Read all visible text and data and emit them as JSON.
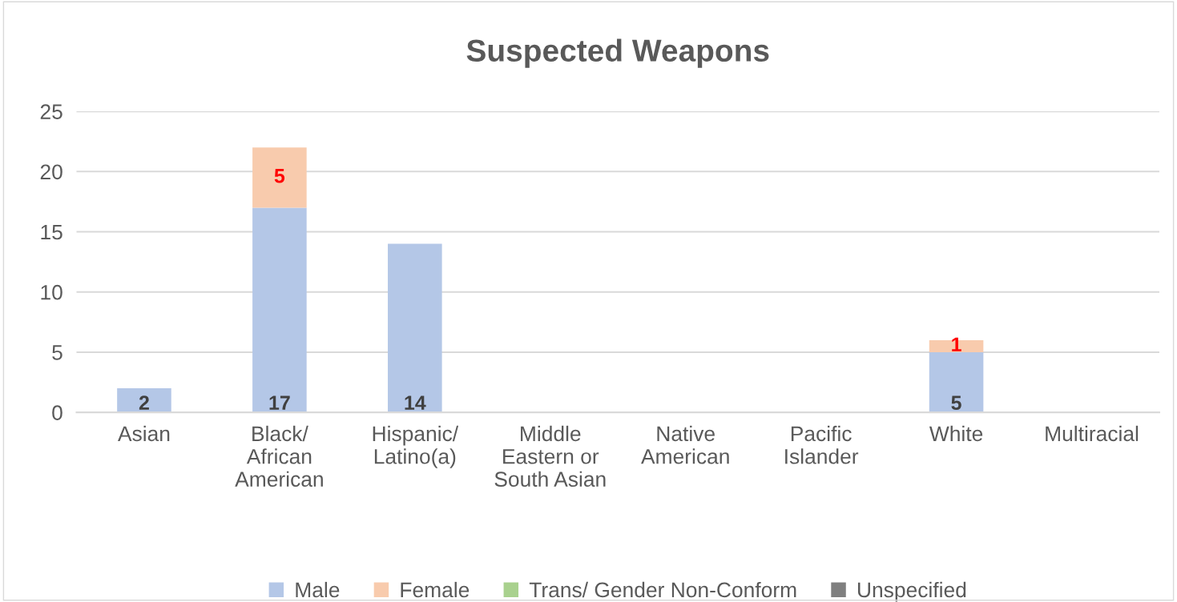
{
  "chart_data": {
    "type": "bar",
    "title": "Suspected Weapons",
    "stacked": true,
    "categories": [
      "Asian",
      "Black/\nAfrican\nAmerican",
      "Hispanic/\nLatino(a)",
      "Middle\nEastern or\nSouth Asian",
      "Native\nAmerican",
      "Pacific\nIslander",
      "White",
      "Multiracial"
    ],
    "series": [
      {
        "name": "Male",
        "color": "#b4c7e7",
        "values": [
          2,
          17,
          14,
          null,
          null,
          null,
          5,
          null
        ],
        "value_labels": [
          "2",
          "17",
          "14",
          null,
          null,
          null,
          "5",
          null
        ]
      },
      {
        "name": "Female",
        "color": "#f8cbad",
        "values": [
          null,
          5,
          null,
          null,
          null,
          null,
          1,
          null
        ],
        "value_labels": [
          null,
          "5",
          null,
          null,
          null,
          null,
          "1",
          null
        ]
      },
      {
        "name": "Trans/ Gender Non-Conform",
        "color": "#a9d18e",
        "values": [
          null,
          null,
          null,
          null,
          null,
          null,
          null,
          null
        ]
      },
      {
        "name": "Unspecified",
        "color": "#7f7f7f",
        "values": [
          null,
          null,
          null,
          null,
          null,
          null,
          null,
          null
        ]
      }
    ],
    "ylim": [
      0,
      25
    ],
    "yticks": [
      0,
      5,
      10,
      15,
      20,
      25
    ],
    "grid": "y",
    "legend": "bottom"
  }
}
